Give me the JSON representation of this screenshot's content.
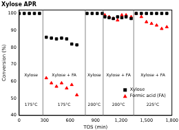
{
  "chart_data": {
    "type": "scatter",
    "title": "Xylose APR",
    "x_label": "TOS (min)",
    "y_label": "Conversion (%)",
    "xlim": [
      0,
      1800
    ],
    "xticks": [
      0,
      300,
      600,
      900,
      1200,
      1500,
      1800
    ],
    "ylim": [
      40,
      102
    ],
    "yticks": [
      40,
      50,
      60,
      70,
      80,
      90,
      100
    ],
    "grid": false,
    "legend": "lower right",
    "dividers": [
      280,
      780,
      990,
      1350
    ],
    "annotations": [
      [
        "Xylose",
        "175°C"
      ],
      [
        "Xylose + FA",
        "175°C"
      ],
      [
        "Xylose",
        "200°C"
      ],
      [
        "Xylose + FA",
        "200°C"
      ],
      [
        "Xylose + FA",
        "225°C"
      ]
    ],
    "series": [
      {
        "name": "Xylose",
        "color": "#000000",
        "marker": "square",
        "x": [
          0,
          60,
          120,
          180,
          240,
          320,
          380,
          440,
          500,
          560,
          620,
          680,
          800,
          860,
          920,
          980,
          1010,
          1060,
          1110,
          1160,
          1210,
          1260,
          1320,
          1380,
          1440,
          1500,
          1560,
          1620,
          1680,
          1740
        ],
        "values": [
          100,
          100,
          100,
          100,
          100,
          86,
          85.5,
          85,
          85.5,
          85,
          82,
          81.5,
          100,
          100,
          100,
          100,
          98,
          97.5,
          97,
          98,
          97.5,
          98,
          97,
          100,
          100,
          100,
          100,
          100,
          100,
          100
        ]
      },
      {
        "name": "Formic acid (FA)",
        "color": "#ff0000",
        "marker": "triangle",
        "x": [
          320,
          380,
          440,
          500,
          560,
          620,
          680,
          1010,
          1060,
          1110,
          1160,
          1210,
          1260,
          1320,
          1380,
          1440,
          1500,
          1560,
          1620,
          1680,
          1740
        ],
        "values": [
          62,
          59,
          57,
          59,
          56,
          58,
          52,
          99,
          98,
          97,
          96,
          99,
          99,
          98,
          100,
          98,
          95,
          94,
          93,
          91,
          92
        ]
      }
    ]
  }
}
